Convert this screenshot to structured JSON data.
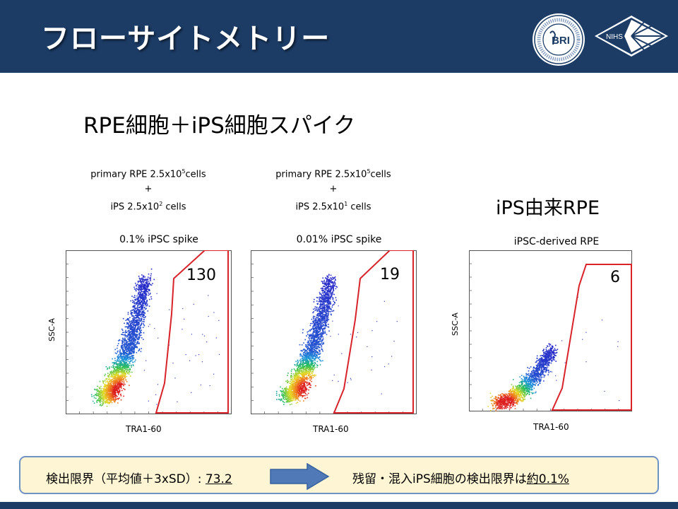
{
  "header": {
    "title": "フローサイトメトリー",
    "logo_bri_text": "BRI",
    "logo_nihs_text": "NIHS"
  },
  "subtitle": "RPE細胞＋iPS細胞スパイク",
  "ips_title": "iPS由来RPE",
  "descriptions": [
    {
      "line1_pre": "primary RPE 2.5x10",
      "line1_sup": "5",
      "line1_post": "cells",
      "plus": "+",
      "line3_pre": "iPS 2.5x10",
      "line3_sup": "2",
      "line3_post": " cells"
    },
    {
      "line1_pre": "primary RPE 2.5x10",
      "line1_sup": "5",
      "line1_post": "cells",
      "plus": "+",
      "line3_pre": "iPS 2.5x10",
      "line3_sup": "1",
      "line3_post": " cells"
    }
  ],
  "colors": {
    "header": "#1c3c66",
    "gate": "#d8232a",
    "summary_bg": "#fdf5d3",
    "summary_border": "#6f93c4",
    "arrow": "#4f79b7"
  },
  "chart_data": [
    {
      "type": "scatter",
      "title": "0.1% iPSC spike",
      "xlabel": "TRA1-60",
      "ylabel": "SSC-A",
      "gate_count": "130",
      "style": "density-heatmap",
      "gate_color": "#d8232a"
    },
    {
      "type": "scatter",
      "title": "0.01% iPSC spike",
      "xlabel": "TRA1-60",
      "ylabel": "",
      "gate_count": "19",
      "style": "density-heatmap",
      "gate_color": "#d8232a"
    },
    {
      "type": "scatter",
      "title": "iPSC-derived RPE",
      "xlabel": "TRA1-60",
      "ylabel": "SSC-A",
      "gate_count": "6",
      "style": "density-heatmap",
      "gate_color": "#d8232a"
    }
  ],
  "summary": {
    "left_label": "検出限界（平均値＋3xSD）: ",
    "left_value": "73.2",
    "right_label": "残留・混入iPS細胞の検出限界は",
    "right_value_u": "約",
    "right_value": "0.1%"
  }
}
